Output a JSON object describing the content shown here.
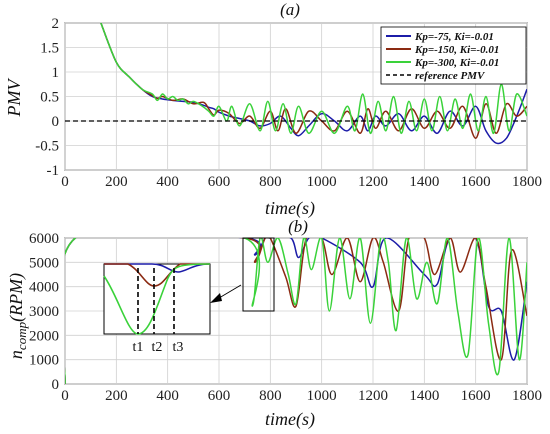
{
  "chart_data": [
    {
      "type": "line",
      "title": "(a)",
      "xlabel": "time(s)",
      "ylabel": "PMV",
      "xlim": [
        0,
        1800
      ],
      "ylim": [
        -1,
        2
      ],
      "xticks": [
        "0",
        "200",
        "400",
        "600",
        "800",
        "1000",
        "1200",
        "1400",
        "1600",
        "1800"
      ],
      "yticks": [
        "2",
        "1.5",
        "1",
        "0.5",
        "0",
        "-0.5",
        "-1"
      ],
      "grid": true,
      "legend_position": "top-right",
      "colors": {
        "blue": "#1c1ca8",
        "red": "#8b2a12",
        "green": "#3ad23a",
        "ref": "#000000"
      },
      "series": [
        {
          "name": "Kp=-75, Ki=-0.01",
          "x": [
            140,
            200,
            250,
            300,
            340,
            380,
            420,
            460,
            500,
            540,
            560,
            580,
            600,
            640,
            680,
            720,
            760,
            800,
            840,
            880,
            910,
            950,
            1000,
            1050,
            1100,
            1150,
            1180,
            1210,
            1250,
            1300,
            1350,
            1400,
            1450,
            1500,
            1550,
            1600,
            1640,
            1680,
            1720,
            1760,
            1800
          ],
          "y": [
            2.0,
            1.2,
            0.9,
            0.65,
            0.5,
            0.45,
            0.42,
            0.4,
            0.38,
            0.32,
            0.28,
            0.25,
            0.18,
            0.1,
            0.05,
            0.0,
            -0.1,
            -0.05,
            0.1,
            -0.15,
            -0.3,
            -0.1,
            0.15,
            0.0,
            -0.2,
            0.1,
            -0.2,
            0.1,
            -0.1,
            0.15,
            -0.2,
            0.1,
            -0.25,
            0.2,
            -0.1,
            0.3,
            -0.2,
            -0.45,
            -0.35,
            0.1,
            0.65
          ]
        },
        {
          "name": "Kp=-150, Ki=-0.01",
          "x": [
            140,
            200,
            250,
            300,
            340,
            360,
            380,
            420,
            460,
            500,
            540,
            560,
            580,
            600,
            640,
            680,
            720,
            760,
            800,
            830,
            860,
            900,
            950,
            1000,
            1050,
            1100,
            1150,
            1180,
            1210,
            1250,
            1300,
            1350,
            1400,
            1450,
            1500,
            1550,
            1600,
            1640,
            1680,
            1720,
            1760,
            1800
          ],
          "y": [
            2.0,
            1.2,
            0.9,
            0.65,
            0.52,
            0.46,
            0.5,
            0.42,
            0.45,
            0.35,
            0.38,
            0.25,
            0.12,
            0.22,
            0.15,
            -0.05,
            0.1,
            -0.15,
            0.2,
            -0.2,
            0.25,
            -0.25,
            0.2,
            0.0,
            -0.2,
            0.2,
            -0.25,
            0.25,
            -0.15,
            0.2,
            -0.2,
            0.25,
            -0.15,
            0.2,
            -0.15,
            0.3,
            -0.35,
            0.35,
            -0.25,
            0.35,
            0.1,
            0.3
          ]
        },
        {
          "name": "Kp=-300, Ki=-0.01",
          "x": [
            140,
            200,
            250,
            300,
            340,
            360,
            380,
            400,
            420,
            440,
            460,
            480,
            500,
            530,
            560,
            580,
            600,
            630,
            650,
            680,
            720,
            760,
            790,
            820,
            850,
            880,
            910,
            950,
            1000,
            1050,
            1100,
            1130,
            1160,
            1190,
            1220,
            1250,
            1280,
            1310,
            1340,
            1370,
            1400,
            1430,
            1460,
            1490,
            1520,
            1550,
            1580,
            1610,
            1640,
            1670,
            1700,
            1730,
            1760,
            1800
          ],
          "y": [
            2.0,
            1.2,
            0.9,
            0.65,
            0.55,
            0.42,
            0.55,
            0.45,
            0.5,
            0.42,
            0.45,
            0.35,
            0.4,
            0.32,
            0.2,
            0.1,
            0.3,
            0.0,
            0.3,
            -0.1,
            0.35,
            -0.2,
            0.4,
            -0.2,
            0.35,
            -0.25,
            0.3,
            -0.25,
            0.2,
            -0.25,
            0.3,
            -0.2,
            0.55,
            -0.25,
            0.4,
            -0.2,
            0.5,
            -0.25,
            0.4,
            -0.2,
            0.45,
            -0.2,
            0.5,
            -0.2,
            0.45,
            -0.15,
            0.55,
            -0.2,
            0.5,
            -0.25,
            0.75,
            -0.2,
            0.55,
            0.1
          ]
        },
        {
          "name": "reference PMV",
          "x": [
            0,
            1800
          ],
          "y": [
            0,
            0
          ]
        }
      ]
    },
    {
      "type": "line",
      "title": "(b)",
      "xlabel": "time(s)",
      "ylabel": "n_comp(RPM)",
      "ylabel_main": "n",
      "ylabel_sub": "comp",
      "ylabel_tail": "(RPM)",
      "xlim": [
        0,
        1800
      ],
      "ylim": [
        0,
        6000
      ],
      "xticks": [
        "0",
        "200",
        "400",
        "600",
        "800",
        "1000",
        "1200",
        "1400",
        "1600",
        "1800"
      ],
      "yticks": [
        "6000",
        "5000",
        "4000",
        "3000",
        "2000",
        "1000",
        "0"
      ],
      "grid": true,
      "inset_labels": [
        "t1",
        "t2",
        "t3"
      ],
      "series": [
        {
          "name": "Kp=-75, Ki=-0.01",
          "x": [
            0,
            40,
            700,
            740,
            780,
            800,
            880,
            910,
            950,
            1000,
            1150,
            1200,
            1250,
            1400,
            1450,
            1500,
            1600,
            1650,
            1700,
            1750,
            1800
          ],
          "y": [
            0,
            6000,
            6000,
            5300,
            6000,
            6000,
            6000,
            5200,
            6000,
            6000,
            5000,
            4000,
            6000,
            4500,
            4100,
            6000,
            6000,
            3200,
            3000,
            1000,
            4200
          ]
        },
        {
          "name": "Kp=-150, Ki=-0.01",
          "x": [
            0,
            40,
            700,
            740,
            780,
            800,
            860,
            900,
            940,
            1000,
            1040,
            1100,
            1150,
            1200,
            1240,
            1300,
            1340,
            1400,
            1440,
            1500,
            1540,
            1600,
            1640,
            1700,
            1740,
            1800
          ],
          "y": [
            0,
            6000,
            6000,
            5000,
            6000,
            6000,
            4400,
            3200,
            6000,
            6000,
            4500,
            6000,
            4200,
            6000,
            5000,
            3000,
            6000,
            6000,
            4500,
            6000,
            4600,
            6000,
            4000,
            1000,
            5500,
            2800
          ]
        },
        {
          "name": "Kp=-300, Ki=-0.01",
          "x": [
            0,
            40,
            700,
            730,
            760,
            790,
            830,
            870,
            900,
            930,
            960,
            1000,
            1030,
            1070,
            1110,
            1150,
            1190,
            1230,
            1260,
            1290,
            1330,
            1370,
            1410,
            1450,
            1490,
            1530,
            1570,
            1610,
            1650,
            1690,
            1730,
            1770,
            1800
          ],
          "y": [
            0,
            6000,
            6000,
            3200,
            6000,
            5000,
            6000,
            4500,
            3300,
            6000,
            4700,
            6000,
            3000,
            6000,
            3500,
            6000,
            2500,
            6000,
            5000,
            2200,
            6000,
            3500,
            5000,
            3300,
            6000,
            3000,
            1200,
            6000,
            2500,
            500,
            6000,
            1000,
            5000
          ]
        }
      ]
    }
  ]
}
